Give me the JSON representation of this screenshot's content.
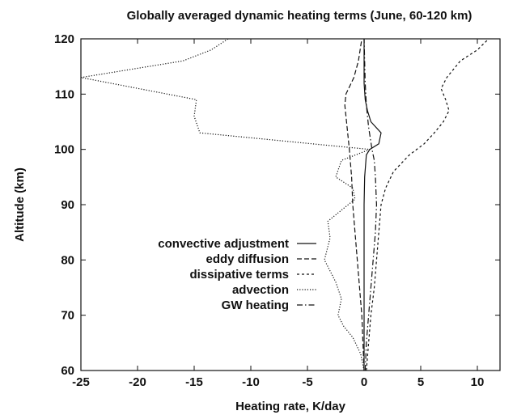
{
  "chart_data": {
    "type": "line",
    "title": "Globally averaged dynamic heating terms (June, 60-120 km)",
    "xlabel": "Heating rate, K/day",
    "ylabel": "Altitude (km)",
    "xlim": [
      -25,
      12
    ],
    "ylim": [
      60,
      120
    ],
    "xticks": [
      -25,
      -20,
      -15,
      -10,
      -5,
      0,
      5,
      10
    ],
    "yticks": [
      60,
      70,
      80,
      90,
      100,
      110,
      120
    ],
    "grid": false,
    "legend_position": "center-left",
    "series": [
      {
        "name": "convective adjustment",
        "style": "solid",
        "points": [
          [
            0,
            60
          ],
          [
            0,
            70
          ],
          [
            0,
            80
          ],
          [
            0,
            90
          ],
          [
            0.05,
            95
          ],
          [
            0.2,
            99
          ],
          [
            0.5,
            100
          ],
          [
            1.3,
            101
          ],
          [
            1.5,
            103
          ],
          [
            0.6,
            105
          ],
          [
            0.3,
            107
          ],
          [
            0.1,
            109
          ],
          [
            0,
            112
          ],
          [
            0,
            115
          ],
          [
            0,
            118
          ],
          [
            0,
            120
          ]
        ]
      },
      {
        "name": "eddy diffusion",
        "style": "dashed",
        "points": [
          [
            0,
            60
          ],
          [
            -0.1,
            65
          ],
          [
            -0.2,
            70
          ],
          [
            -0.4,
            75
          ],
          [
            -0.6,
            80
          ],
          [
            -0.8,
            85
          ],
          [
            -1.0,
            90
          ],
          [
            -1.1,
            95
          ],
          [
            -1.3,
            100
          ],
          [
            -1.5,
            104
          ],
          [
            -1.7,
            108
          ],
          [
            -1.6,
            110
          ],
          [
            -0.9,
            113
          ],
          [
            -0.5,
            116
          ],
          [
            -0.2,
            120
          ]
        ]
      },
      {
        "name": "dissipative terms",
        "style": "dotted-dashed-short",
        "points": [
          [
            0.2,
            60
          ],
          [
            0.4,
            65
          ],
          [
            0.6,
            70
          ],
          [
            0.9,
            75
          ],
          [
            1.1,
            80
          ],
          [
            1.3,
            85
          ],
          [
            1.5,
            90
          ],
          [
            1.9,
            93
          ],
          [
            2.6,
            96
          ],
          [
            4.0,
            99
          ],
          [
            5.3,
            101
          ],
          [
            6.2,
            103
          ],
          [
            7.0,
            105
          ],
          [
            7.5,
            107
          ],
          [
            7.2,
            109
          ],
          [
            6.8,
            111
          ],
          [
            7.3,
            113
          ],
          [
            8.5,
            116
          ],
          [
            10.0,
            118
          ],
          [
            11.0,
            120
          ]
        ]
      },
      {
        "name": "advection",
        "style": "dotted",
        "points": [
          [
            0,
            60
          ],
          [
            -0.3,
            63
          ],
          [
            -1.0,
            66
          ],
          [
            -1.8,
            68
          ],
          [
            -2.3,
            70
          ],
          [
            -2.0,
            73
          ],
          [
            -2.5,
            76
          ],
          [
            -3.5,
            80
          ],
          [
            -3.0,
            84
          ],
          [
            -3.2,
            87
          ],
          [
            -2.0,
            89
          ],
          [
            -0.8,
            91
          ],
          [
            -1.0,
            93
          ],
          [
            -2.5,
            95
          ],
          [
            -2.0,
            98
          ],
          [
            0.5,
            100
          ],
          [
            -14.5,
            103
          ],
          [
            -15.0,
            106
          ],
          [
            -14.8,
            109
          ],
          [
            -25.0,
            113
          ],
          [
            -16.0,
            116
          ],
          [
            -13.5,
            118
          ],
          [
            -12.0,
            120
          ]
        ]
      },
      {
        "name": "GW heating",
        "style": "dash-dot",
        "points": [
          [
            0.1,
            60
          ],
          [
            0.2,
            65
          ],
          [
            0.4,
            70
          ],
          [
            0.6,
            75
          ],
          [
            0.8,
            80
          ],
          [
            1.0,
            85
          ],
          [
            1.1,
            90
          ],
          [
            1.0,
            95
          ],
          [
            0.9,
            98
          ],
          [
            0.7,
            100
          ],
          [
            0.4,
            104
          ],
          [
            0.2,
            108
          ],
          [
            0.1,
            112
          ],
          [
            0.05,
            116
          ],
          [
            0,
            120
          ]
        ]
      }
    ]
  }
}
